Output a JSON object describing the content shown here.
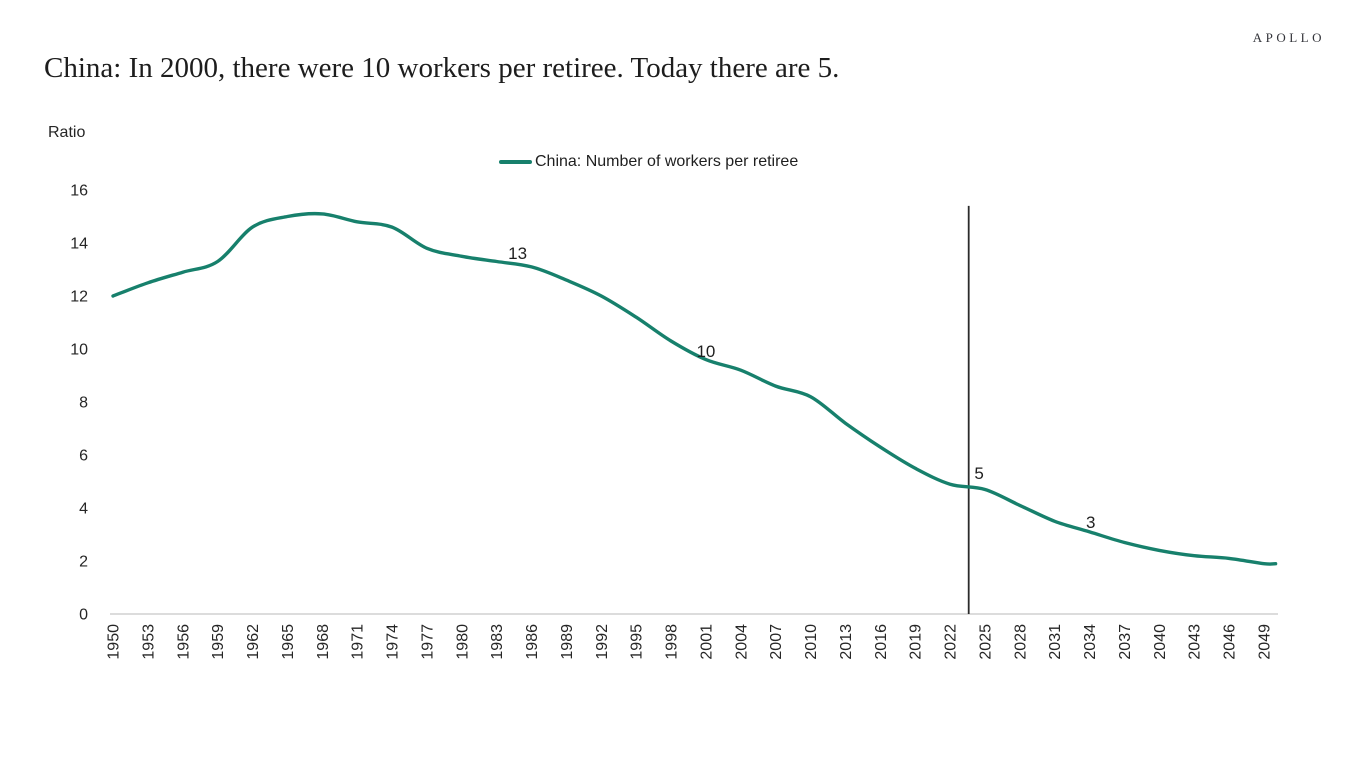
{
  "header": {
    "logo": "APOLLO",
    "title": "China: In 2000, there were 10 workers per retiree. Today there are 5."
  },
  "chart_data": {
    "type": "line",
    "title": "China: In 2000, there were 10 workers per retiree. Today there are 5.",
    "ylabel": "Ratio",
    "xlabel": "",
    "legend": "China: Number of workers per retiree",
    "legend_position": "top-center",
    "grid": false,
    "ylim": [
      0,
      16
    ],
    "yticks": [
      0,
      2,
      4,
      6,
      8,
      10,
      12,
      14,
      16
    ],
    "xticks": [
      1950,
      1953,
      1956,
      1959,
      1962,
      1965,
      1968,
      1971,
      1974,
      1977,
      1980,
      1983,
      1986,
      1989,
      1992,
      1995,
      1998,
      2001,
      2004,
      2007,
      2010,
      2013,
      2016,
      2019,
      2022,
      2025,
      2028,
      2031,
      2034,
      2037,
      2040,
      2043,
      2046,
      2049
    ],
    "series": [
      {
        "name": "China: Number of workers per retiree",
        "color": "#17806C",
        "points": [
          [
            1950,
            12.0
          ],
          [
            1953,
            12.5
          ],
          [
            1956,
            12.9
          ],
          [
            1959,
            13.3
          ],
          [
            1962,
            14.6
          ],
          [
            1965,
            15.0
          ],
          [
            1968,
            15.1
          ],
          [
            1971,
            14.8
          ],
          [
            1974,
            14.6
          ],
          [
            1977,
            13.8
          ],
          [
            1980,
            13.5
          ],
          [
            1983,
            13.3
          ],
          [
            1986,
            13.1
          ],
          [
            1989,
            12.6
          ],
          [
            1992,
            12.0
          ],
          [
            1995,
            11.2
          ],
          [
            1998,
            10.3
          ],
          [
            2001,
            9.6
          ],
          [
            2004,
            9.2
          ],
          [
            2007,
            8.6
          ],
          [
            2010,
            8.2
          ],
          [
            2013,
            7.2
          ],
          [
            2016,
            6.3
          ],
          [
            2019,
            5.5
          ],
          [
            2022,
            4.9
          ],
          [
            2025,
            4.7
          ],
          [
            2028,
            4.1
          ],
          [
            2031,
            3.5
          ],
          [
            2034,
            3.1
          ],
          [
            2037,
            2.7
          ],
          [
            2040,
            2.4
          ],
          [
            2043,
            2.2
          ],
          [
            2046,
            2.1
          ],
          [
            2049,
            1.9
          ],
          [
            2050,
            1.9
          ]
        ]
      }
    ],
    "annotations": [
      {
        "text": "13",
        "year": 1984.8,
        "value": 13.4
      },
      {
        "text": "10",
        "year": 2001.0,
        "value": 9.7
      },
      {
        "text": "5",
        "year": 2024.5,
        "value": 5.1
      },
      {
        "text": "3",
        "year": 2034.1,
        "value": 3.25
      }
    ],
    "marker_line": {
      "year": 2023.6,
      "value_top": 15.4,
      "value_bottom": 0,
      "color": "#2b2b2b"
    },
    "axis_line_color": "#c8c8c8"
  }
}
